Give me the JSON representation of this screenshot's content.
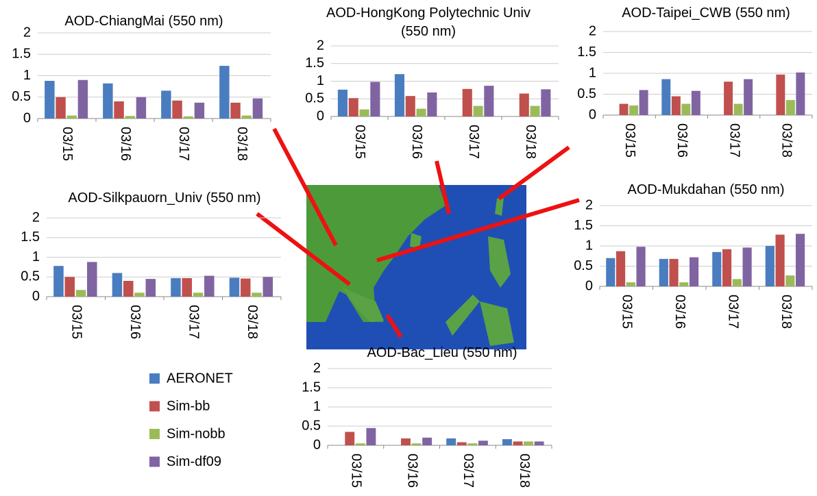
{
  "legend": [
    {
      "name": "AERONET",
      "color": "#4a7dbf"
    },
    {
      "name": "Sim-bb",
      "color": "#c0504d"
    },
    {
      "name": "Sim-nobb",
      "color": "#9bbb59"
    },
    {
      "name": "Sim-df09",
      "color": "#8064a2"
    }
  ],
  "chart_data": [
    {
      "type": "bar",
      "title": "AOD-ChiangMai (550 nm)",
      "categories": [
        "03/15",
        "03/16",
        "03/17",
        "03/18"
      ],
      "series": [
        {
          "values": [
            0.88,
            0.82,
            0.65,
            1.23
          ]
        },
        {
          "values": [
            0.5,
            0.4,
            0.42,
            0.37
          ]
        },
        {
          "values": [
            0.07,
            0.06,
            0.05,
            0.07
          ]
        },
        {
          "values": [
            0.9,
            0.5,
            0.37,
            0.47
          ]
        }
      ],
      "ylim": [
        0,
        2
      ],
      "yticks": [
        0,
        0.5,
        1,
        1.5,
        2
      ],
      "grid": true
    },
    {
      "type": "bar",
      "title": "AOD-HongKong Polytechnic Univ (550 nm)",
      "categories": [
        "03/15",
        "03/16",
        "03/17",
        "03/18"
      ],
      "series": [
        {
          "values": [
            0.76,
            1.2,
            null,
            null
          ]
        },
        {
          "values": [
            0.52,
            0.58,
            0.78,
            0.65
          ]
        },
        {
          "values": [
            0.2,
            0.22,
            0.3,
            0.3
          ]
        },
        {
          "values": [
            0.98,
            0.68,
            0.87,
            0.77
          ]
        }
      ],
      "ylim": [
        0,
        2
      ],
      "yticks": [
        0,
        0.5,
        1,
        1.5,
        2
      ],
      "grid": true
    },
    {
      "type": "bar",
      "title": "AOD-Taipei_CWB (550 nm)",
      "categories": [
        "03/15",
        "03/16",
        "03/17",
        "03/18"
      ],
      "series": [
        {
          "values": [
            null,
            0.86,
            null,
            null
          ]
        },
        {
          "values": [
            0.27,
            0.45,
            0.8,
            0.97
          ]
        },
        {
          "values": [
            0.23,
            0.27,
            0.27,
            0.36
          ]
        },
        {
          "values": [
            0.6,
            0.58,
            0.86,
            1.02
          ]
        }
      ],
      "ylim": [
        0,
        2
      ],
      "yticks": [
        0,
        0.5,
        1,
        1.5,
        2
      ],
      "grid": true
    },
    {
      "type": "bar",
      "title": "AOD-Silkpauorn_Univ (550 nm)",
      "categories": [
        "03/15",
        "03/16",
        "03/17",
        "03/18"
      ],
      "series": [
        {
          "values": [
            0.78,
            0.6,
            0.47,
            0.48
          ]
        },
        {
          "values": [
            0.5,
            0.4,
            0.47,
            0.46
          ]
        },
        {
          "values": [
            0.17,
            0.1,
            0.1,
            0.1
          ]
        },
        {
          "values": [
            0.88,
            0.45,
            0.53,
            0.5
          ]
        }
      ],
      "ylim": [
        0,
        2
      ],
      "yticks": [
        0,
        0.5,
        1,
        1.5,
        2
      ],
      "grid": true
    },
    {
      "type": "bar",
      "title": "AOD-Mukdahan (550 nm)",
      "categories": [
        "03/15",
        "03/16",
        "03/17",
        "03/18"
      ],
      "series": [
        {
          "values": [
            0.7,
            0.68,
            0.85,
            1.0
          ]
        },
        {
          "values": [
            0.87,
            0.68,
            0.92,
            1.28
          ]
        },
        {
          "values": [
            0.1,
            0.1,
            0.18,
            0.27
          ]
        },
        {
          "values": [
            0.98,
            0.72,
            0.96,
            1.3
          ]
        }
      ],
      "ylim": [
        0,
        2
      ],
      "yticks": [
        0,
        0.5,
        1,
        1.5,
        2
      ],
      "grid": true
    },
    {
      "type": "bar",
      "title": "AOD-Bac_Lieu (550 nm)",
      "categories": [
        "03/15",
        "03/16",
        "03/17",
        "03/18"
      ],
      "series": [
        {
          "values": [
            null,
            null,
            0.18,
            0.16
          ]
        },
        {
          "values": [
            0.35,
            0.18,
            0.08,
            0.1
          ]
        },
        {
          "values": [
            0.05,
            0.05,
            0.05,
            0.1
          ]
        },
        {
          "values": [
            0.45,
            0.2,
            0.12,
            0.1
          ]
        }
      ],
      "ylim": [
        0,
        2
      ],
      "yticks": [
        0,
        0.5,
        1,
        1.5,
        2
      ],
      "grid": true
    }
  ]
}
